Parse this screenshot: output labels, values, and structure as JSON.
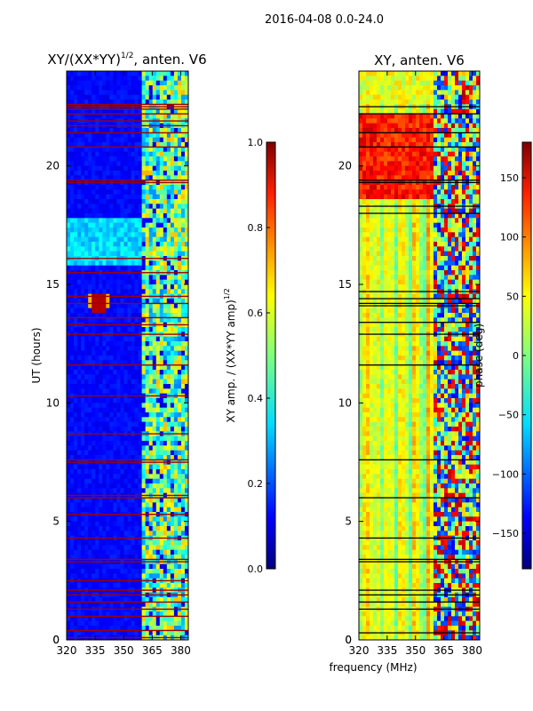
{
  "suptitle": "2016-04-08 0.0-24.0",
  "shared_xlabel": "frequency (MHz)",
  "colormap": [
    "#00007f",
    "#0000ff",
    "#007fff",
    "#00ffff",
    "#7fff7f",
    "#ffff00",
    "#ff7f00",
    "#ff0000",
    "#7f0000"
  ],
  "chart_data": [
    {
      "type": "heatmap",
      "title_main": "XY/(XX*YY)",
      "title_sup": "1/2",
      "title_tail": ", anten. V6",
      "ylabel": "UT (hours)",
      "xlim": [
        320,
        384
      ],
      "ylim": [
        0,
        24
      ],
      "xticks": [
        320,
        335,
        350,
        365,
        380
      ],
      "yticks": [
        0,
        5,
        10,
        15,
        20
      ],
      "value_range": [
        0.0,
        1.0
      ],
      "bright_band_start_mhz": 360,
      "flagged_rows_ut": [
        0.1,
        0.4,
        1.0,
        1.3,
        1.6,
        1.9,
        2.1,
        2.5,
        3.3,
        3.4,
        4.3,
        5.3,
        6.0,
        6.1,
        7.5,
        7.6,
        8.7,
        10.3,
        11.6,
        12.9,
        13.3,
        13.6,
        14.2,
        14.5,
        15.5,
        16.1,
        19.3,
        19.4,
        20.8,
        21.4,
        21.7,
        21.9,
        22.2,
        22.4,
        22.5,
        22.6
      ],
      "hot_spot": {
        "frequency_mhz": 337,
        "ut_hours": 14.3,
        "value": 1.0
      },
      "colorbar": {
        "label_main": "XY amp. / (XX*YY amp)",
        "label_sup": "1/2",
        "range": [
          0.0,
          1.0
        ],
        "ticks": [
          "0.0",
          "0.2",
          "0.4",
          "0.6",
          "0.8",
          "1.0"
        ]
      }
    },
    {
      "type": "heatmap",
      "title": "XY, anten. V6",
      "xlim": [
        320,
        384
      ],
      "ylim": [
        0,
        24
      ],
      "xticks": [
        320,
        335,
        350,
        365,
        380
      ],
      "yticks": [
        0,
        5,
        10,
        15,
        20
      ],
      "value_range": [
        -180,
        180
      ],
      "noisy_band_start_mhz": 359,
      "flagged_rows_ut": [
        0.3,
        1.3,
        1.6,
        1.9,
        2.1,
        3.3,
        3.4,
        4.3,
        6.0,
        7.6,
        11.6,
        12.9,
        13.4,
        14.1,
        14.2,
        14.4,
        14.7,
        18.0,
        18.3,
        19.3,
        19.4,
        20.8,
        21.4,
        22.2,
        22.5
      ],
      "colorbar": {
        "label": "phase (deg)",
        "range": [
          -180,
          180
        ],
        "ticks": [
          "−150",
          "−100",
          "−50",
          "0",
          "50",
          "100",
          "150"
        ]
      }
    }
  ]
}
